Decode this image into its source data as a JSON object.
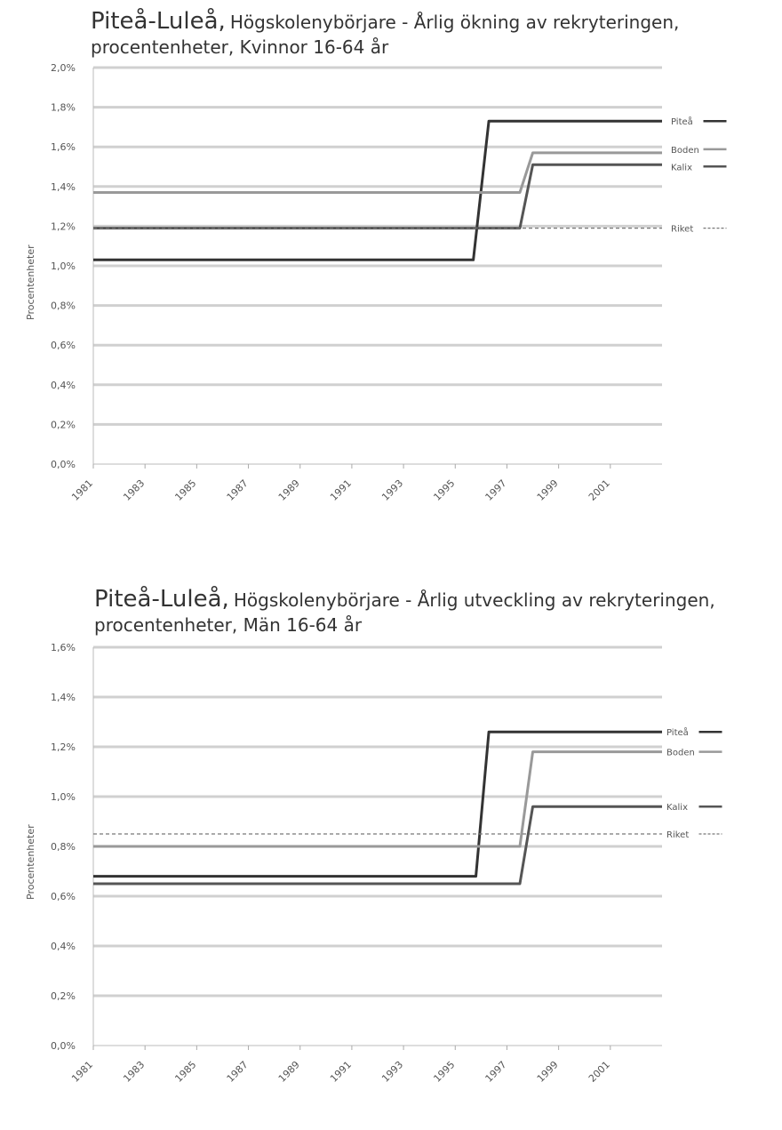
{
  "chart_data": [
    {
      "type": "line",
      "title_place": "Piteå-Luleå,",
      "title_rest": "Högskolenybörjare - Årlig ökning av rekryteringen,",
      "title_line2": "procentenheter, Kvinnor 16-64 år",
      "ylabel": "Procentenheter",
      "xlabel": "",
      "ylim": [
        0,
        2.0
      ],
      "yticks": [
        "0,0%",
        "0,2%",
        "0,4%",
        "0,6%",
        "0,8%",
        "1,0%",
        "1,2%",
        "1,4%",
        "1,6%",
        "1,8%",
        "2,0%"
      ],
      "xlim": [
        1981,
        2003
      ],
      "xticks": [
        "1981",
        "1983",
        "1985",
        "1987",
        "1989",
        "1991",
        "1993",
        "1995",
        "1997",
        "1999",
        "2001"
      ],
      "grid": true,
      "series": [
        {
          "name": "Piteå",
          "color": "#333333",
          "dash": false,
          "width": 3,
          "x": [
            1981,
            1995.7,
            1996.3,
            2003
          ],
          "y": [
            1.03,
            1.03,
            1.73,
            1.73
          ]
        },
        {
          "name": "Boden",
          "color": "#999999",
          "dash": false,
          "width": 3,
          "x": [
            1981,
            1997.5,
            1998,
            2003
          ],
          "y": [
            1.37,
            1.37,
            1.57,
            1.57
          ]
        },
        {
          "name": "Kalix",
          "color": "#555555",
          "dash": false,
          "width": 3,
          "x": [
            1981,
            1997.5,
            1998,
            2003
          ],
          "y": [
            1.19,
            1.19,
            1.51,
            1.51
          ]
        },
        {
          "name": "Riket",
          "color": "#777777",
          "dash": true,
          "width": 1.2,
          "x": [
            1981,
            2003
          ],
          "y": [
            1.19,
            1.19
          ]
        }
      ]
    },
    {
      "type": "line",
      "title_place": "Piteå-Luleå,",
      "title_rest": "Högskolenybörjare - Årlig utveckling av rekryteringen,",
      "title_line2": "procentenheter, Män 16-64 år",
      "ylabel": "Procentenheter",
      "xlabel": "",
      "ylim": [
        0,
        1.6
      ],
      "yticks": [
        "0,0%",
        "0,2%",
        "0,4%",
        "0,6%",
        "0,8%",
        "1,0%",
        "1,2%",
        "1,4%",
        "1,6%"
      ],
      "xlim": [
        1981,
        2003
      ],
      "xticks": [
        "1981",
        "1983",
        "1985",
        "1987",
        "1989",
        "1991",
        "1993",
        "1995",
        "1997",
        "1999",
        "2001"
      ],
      "grid": true,
      "series": [
        {
          "name": "Piteå",
          "color": "#333333",
          "dash": false,
          "width": 3,
          "x": [
            1981,
            1995.8,
            1996.3,
            2003
          ],
          "y": [
            0.68,
            0.68,
            1.26,
            1.26
          ]
        },
        {
          "name": "Boden",
          "color": "#999999",
          "dash": false,
          "width": 3,
          "x": [
            1981,
            1997.5,
            1998,
            2003
          ],
          "y": [
            0.8,
            0.8,
            1.18,
            1.18
          ]
        },
        {
          "name": "Kalix",
          "color": "#555555",
          "dash": false,
          "width": 3,
          "x": [
            1981,
            1997.5,
            1998,
            2003
          ],
          "y": [
            0.65,
            0.65,
            0.96,
            0.96
          ]
        },
        {
          "name": "Riket",
          "color": "#777777",
          "dash": true,
          "width": 1.2,
          "x": [
            1981,
            2003
          ],
          "y": [
            0.85,
            0.85
          ]
        }
      ]
    }
  ]
}
